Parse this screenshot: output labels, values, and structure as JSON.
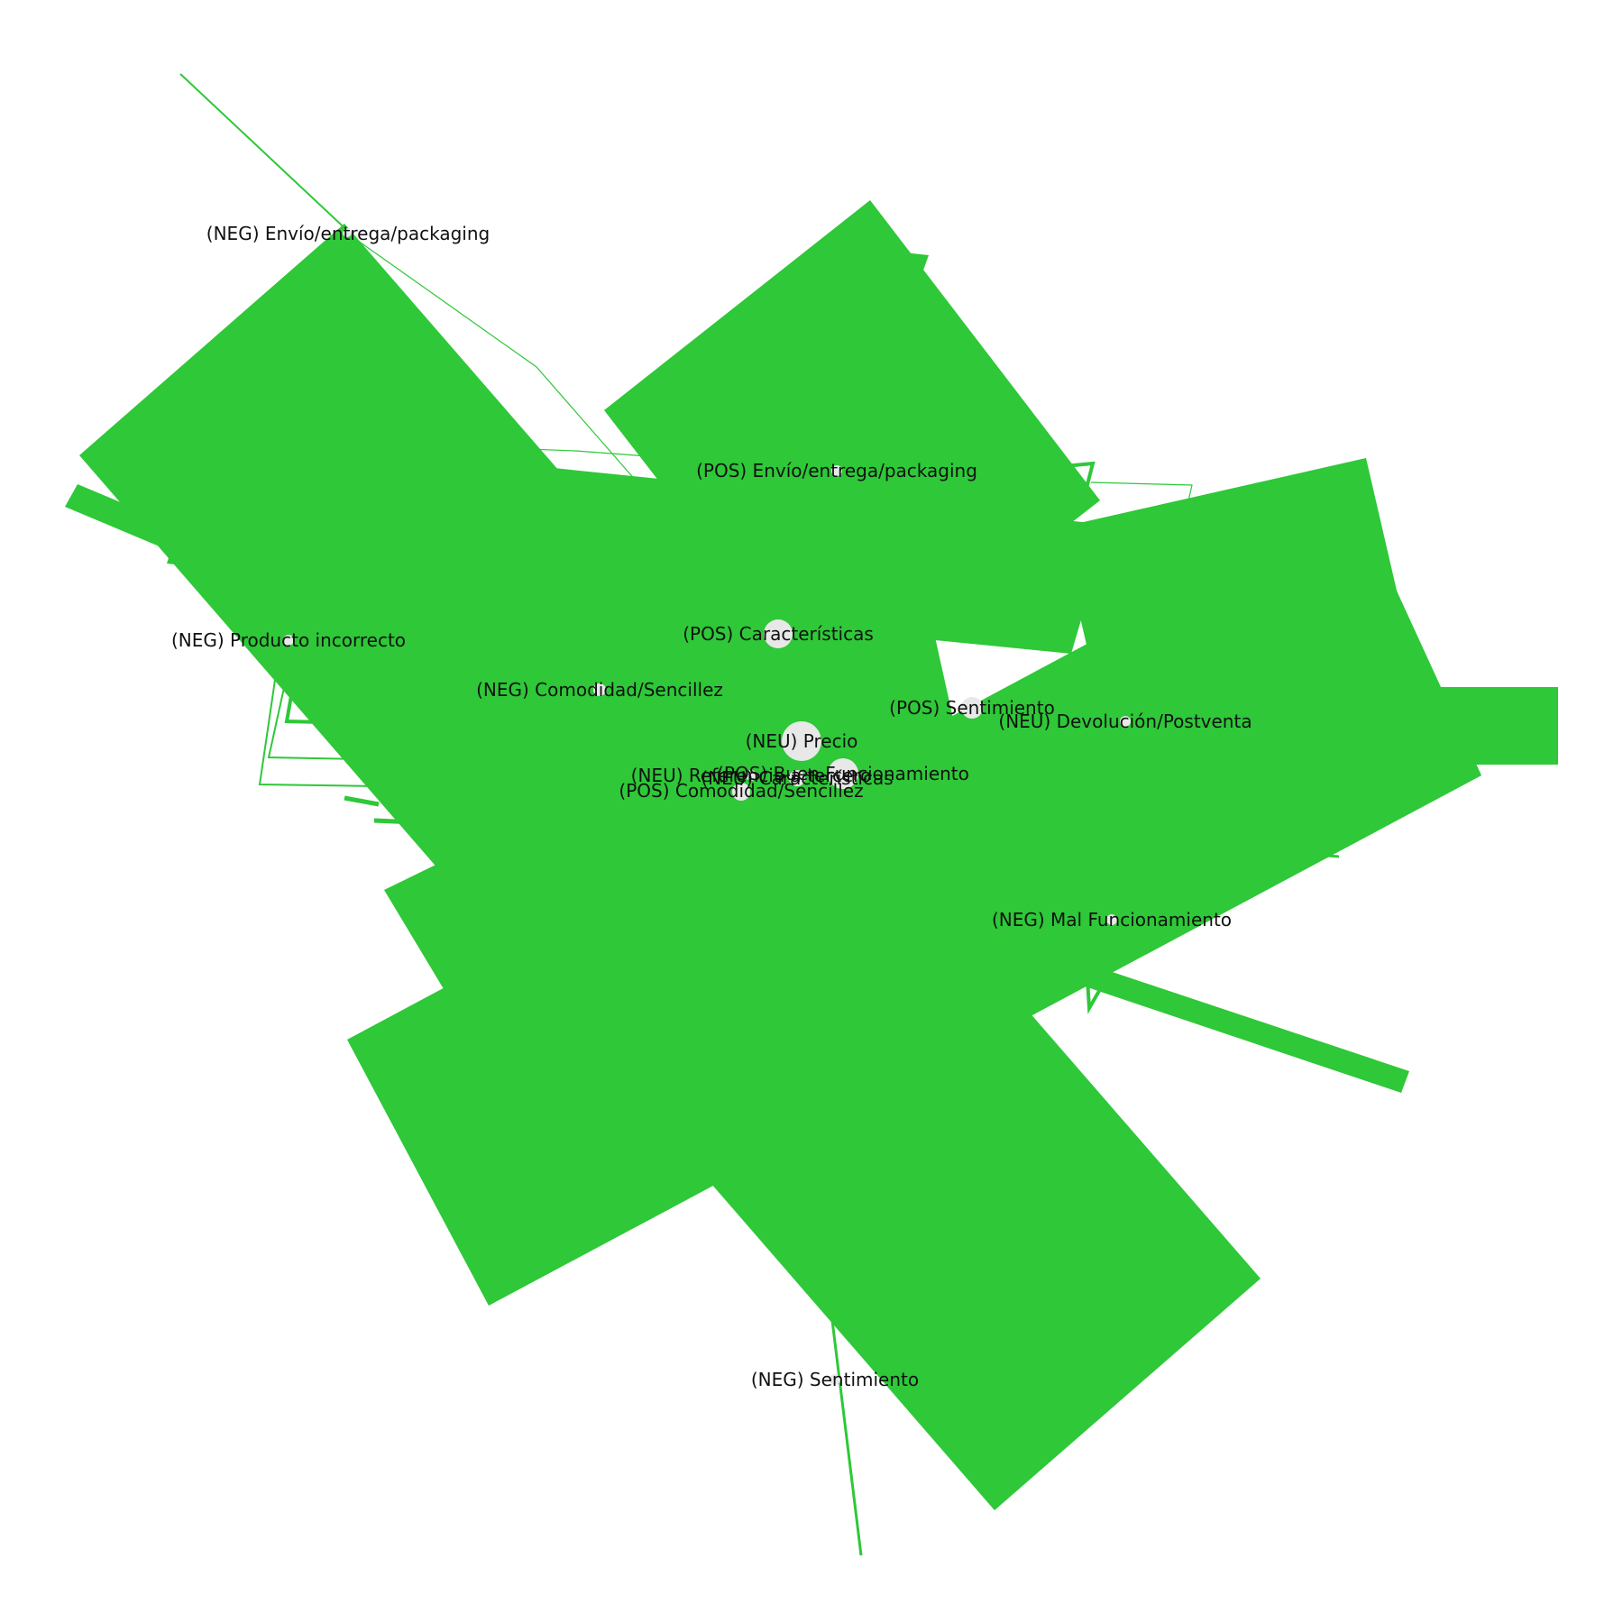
{
  "colors": {
    "edge": "#2ec838",
    "node_fill": "#e8e8e8",
    "label": "#111111",
    "background": "#ffffff"
  },
  "nodes": [
    {
      "id": "neg-envio",
      "label": "(NEG) Envío/entrega/packaging"
    },
    {
      "id": "pos-envio",
      "label": "(POS) Envío/entrega/packaging"
    },
    {
      "id": "neg-producto",
      "label": "(NEG) Producto incorrecto"
    },
    {
      "id": "pos-caracteristicas",
      "label": "(POS) Características"
    },
    {
      "id": "neg-comodidad",
      "label": "(NEG) Comodidad/Sencillez"
    },
    {
      "id": "pos-sentimiento",
      "label": "(POS) Sentimiento"
    },
    {
      "id": "neu-devolucion",
      "label": "(NEU) Devolución/Postventa"
    },
    {
      "id": "neu-precio",
      "label": "(NEU) Precio"
    },
    {
      "id": "neu-referencia",
      "label": "(NEU) Referencia a tercero"
    },
    {
      "id": "pos-buen",
      "label": "(POS) Buen Funcionamiento"
    },
    {
      "id": "neu-caracteristicas",
      "label": "(NEU) Características"
    },
    {
      "id": "pos-comodidad",
      "label": "(POS) Comodidad/Sencillez"
    },
    {
      "id": "neg-mal",
      "label": "(NEG) Mal Funcionamiento"
    },
    {
      "id": "neg-sentimiento",
      "label": "(NEG) Sentimiento"
    }
  ]
}
